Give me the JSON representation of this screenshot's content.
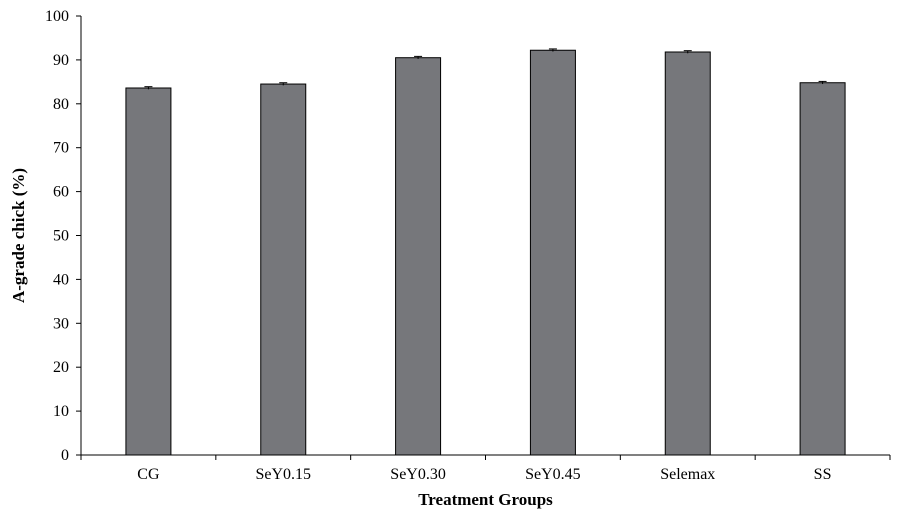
{
  "chart_data": {
    "type": "bar",
    "categories": [
      "CG",
      "SeY0.15",
      "SeY0.30",
      "SeY0.45",
      "Selemax",
      "SS"
    ],
    "values": [
      83.6,
      84.5,
      90.5,
      92.2,
      91.8,
      84.8
    ],
    "error": [
      0.3,
      0.3,
      0.3,
      0.3,
      0.3,
      0.3
    ],
    "title": "",
    "xlabel": "Treatment Groups",
    "ylabel": "A-grade chick (%)",
    "ylim": [
      0,
      100
    ],
    "yticks": [
      0,
      10,
      20,
      30,
      40,
      50,
      60,
      70,
      80,
      90,
      100
    ],
    "grid": false,
    "legend": "none",
    "colors": {
      "bar": "#76777b",
      "bar_edge": "#000000",
      "axis": "#000000"
    }
  }
}
